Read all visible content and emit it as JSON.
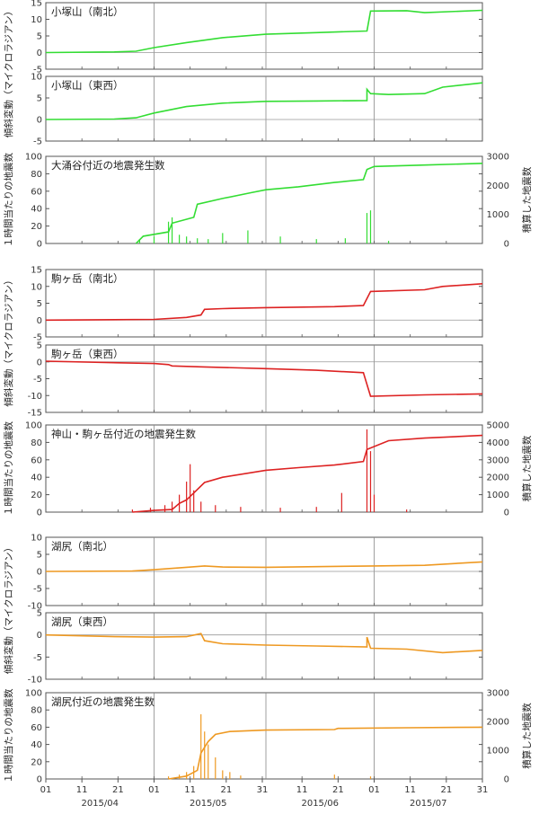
{
  "colors": {
    "kozukayama": "#33dd33",
    "komagatake": "#dd2222",
    "kojiri": "#ee9922",
    "frame": "#555555",
    "zero_line": "#999999",
    "month_line": "#888888"
  },
  "x_axis": {
    "tick_labels": [
      "01",
      "11",
      "21",
      "01",
      "11",
      "21",
      "31",
      "11",
      "21",
      "01",
      "11",
      "21",
      "31"
    ],
    "month_labels": [
      "2015/04",
      "2015/05",
      "2015/06",
      "2015/07"
    ]
  },
  "groups": [
    {
      "tilt_axis_title": "傾斜変動（マイクロラジアン）",
      "count_axis_left_title": "１時間当たりの地震数",
      "count_axis_right_title": "積算した地震数"
    },
    {
      "tilt_axis_title": "傾斜変動（マイクロラジアン）",
      "count_axis_left_title": "１時間当たりの地震数",
      "count_axis_right_title": "積算した地震数"
    },
    {
      "tilt_axis_title": "傾斜変動（マイクロラジアン）",
      "count_axis_left_title": "１時間当たりの地震数",
      "count_axis_right_title": "積算した地震数"
    }
  ],
  "chart_data": [
    {
      "type": "line",
      "title": "小塚山（南北）",
      "color": "#33dd33",
      "ylim": [
        -5,
        15
      ],
      "yticks": [
        -5,
        0,
        5,
        10,
        15
      ],
      "x": [
        "2015-04-01",
        "2015-04-20",
        "2015-04-26",
        "2015-05-01",
        "2015-05-10",
        "2015-05-20",
        "2015-06-01",
        "2015-06-15",
        "2015-06-29",
        "2015-06-30",
        "2015-07-10",
        "2015-07-15",
        "2015-07-31"
      ],
      "y": [
        0,
        0.2,
        0.4,
        1.5,
        3.0,
        4.5,
        5.5,
        6.0,
        6.5,
        12.5,
        12.6,
        12.0,
        12.7
      ]
    },
    {
      "type": "line",
      "title": "小塚山（東西）",
      "color": "#33dd33",
      "ylim": [
        -5,
        10
      ],
      "yticks": [
        -5,
        0,
        5,
        10
      ],
      "x": [
        "2015-04-01",
        "2015-04-20",
        "2015-04-26",
        "2015-05-01",
        "2015-05-10",
        "2015-05-20",
        "2015-06-01",
        "2015-06-15",
        "2015-06-29",
        "2015-06-29",
        "2015-06-30",
        "2015-07-05",
        "2015-07-15",
        "2015-07-20",
        "2015-07-31"
      ],
      "y": [
        0,
        0.1,
        0.4,
        1.5,
        3.0,
        3.8,
        4.2,
        4.3,
        4.4,
        7.0,
        6.0,
        5.8,
        6.0,
        7.5,
        8.5
      ]
    },
    {
      "type": "bar+line",
      "title": "大涌谷付近の地震発生数",
      "color": "#33dd33",
      "ylim": [
        0,
        100
      ],
      "yticks": [
        0,
        20,
        40,
        60,
        80,
        100
      ],
      "y2lim": [
        0,
        3000
      ],
      "y2ticks": [
        0,
        1000,
        2000,
        3000
      ],
      "bars": {
        "x": [
          "2015-04-27",
          "2015-05-01",
          "2015-05-05",
          "2015-05-06",
          "2015-05-08",
          "2015-05-10",
          "2015-05-13",
          "2015-05-16",
          "2015-05-20",
          "2015-05-27",
          "2015-06-05",
          "2015-06-15",
          "2015-06-23",
          "2015-06-29",
          "2015-06-30",
          "2015-07-05"
        ],
        "y": [
          5,
          8,
          25,
          30,
          10,
          8,
          6,
          5,
          12,
          15,
          8,
          5,
          6,
          35,
          38,
          3
        ]
      },
      "cumulative": {
        "x": [
          "2015-04-26",
          "2015-04-28",
          "2015-05-05",
          "2015-05-06",
          "2015-05-12",
          "2015-05-13",
          "2015-05-20",
          "2015-05-28",
          "2015-06-01",
          "2015-06-10",
          "2015-06-20",
          "2015-06-28",
          "2015-06-29",
          "2015-07-01",
          "2015-07-15",
          "2015-07-31"
        ],
        "y": [
          0,
          250,
          400,
          700,
          900,
          1350,
          1550,
          1750,
          1850,
          1950,
          2100,
          2200,
          2550,
          2650,
          2700,
          2760
        ]
      }
    },
    {
      "type": "line",
      "title": "駒ヶ岳（南北）",
      "color": "#dd2222",
      "ylim": [
        -5,
        15
      ],
      "yticks": [
        -5,
        0,
        5,
        10,
        15
      ],
      "x": [
        "2015-04-01",
        "2015-05-01",
        "2015-05-10",
        "2015-05-14",
        "2015-05-15",
        "2015-05-20",
        "2015-06-01",
        "2015-06-20",
        "2015-06-28",
        "2015-06-30",
        "2015-07-15",
        "2015-07-20",
        "2015-07-31"
      ],
      "y": [
        0,
        0.2,
        0.8,
        1.5,
        3.2,
        3.4,
        3.7,
        4.0,
        4.3,
        8.5,
        9.0,
        10.0,
        10.8
      ]
    },
    {
      "type": "line",
      "title": "駒ヶ岳（東西）",
      "color": "#dd2222",
      "ylim": [
        -15,
        5
      ],
      "yticks": [
        -15,
        -10,
        -5,
        0,
        5
      ],
      "x": [
        "2015-04-01",
        "2015-05-01",
        "2015-05-05",
        "2015-05-06",
        "2015-05-15",
        "2015-06-01",
        "2015-06-15",
        "2015-06-28",
        "2015-06-30",
        "2015-07-15",
        "2015-07-31"
      ],
      "y": [
        0.2,
        -0.5,
        -0.8,
        -1.2,
        -1.5,
        -2.0,
        -2.5,
        -3.2,
        -10.2,
        -9.8,
        -9.5
      ]
    },
    {
      "type": "bar+line",
      "title": "神山・駒ヶ岳付近の地震発生数",
      "color": "#dd2222",
      "ylim": [
        0,
        100
      ],
      "yticks": [
        0,
        20,
        40,
        60,
        80,
        100
      ],
      "y2lim": [
        0,
        5000
      ],
      "y2ticks": [
        0,
        1000,
        2000,
        3000,
        4000,
        5000
      ],
      "bars": {
        "x": [
          "2015-04-25",
          "2015-04-30",
          "2015-05-04",
          "2015-05-06",
          "2015-05-08",
          "2015-05-10",
          "2015-05-11",
          "2015-05-12",
          "2015-05-14",
          "2015-05-18",
          "2015-05-25",
          "2015-06-05",
          "2015-06-15",
          "2015-06-22",
          "2015-06-29",
          "2015-06-30",
          "2015-07-01",
          "2015-07-10"
        ],
        "y": [
          3,
          5,
          8,
          12,
          20,
          35,
          55,
          25,
          12,
          8,
          6,
          5,
          6,
          22,
          95,
          70,
          20,
          3
        ]
      },
      "cumulative": {
        "x": [
          "2015-04-25",
          "2015-05-01",
          "2015-05-06",
          "2015-05-08",
          "2015-05-10",
          "2015-05-12",
          "2015-05-15",
          "2015-05-20",
          "2015-06-01",
          "2015-06-10",
          "2015-06-20",
          "2015-06-28",
          "2015-06-29",
          "2015-07-05",
          "2015-07-15",
          "2015-07-31"
        ],
        "y": [
          0,
          100,
          150,
          500,
          700,
          1100,
          1700,
          2000,
          2400,
          2550,
          2700,
          2900,
          3600,
          4100,
          4250,
          4400
        ]
      }
    },
    {
      "type": "line",
      "title": "湖尻（南北）",
      "color": "#ee9922",
      "ylim": [
        -10,
        10
      ],
      "yticks": [
        -10,
        -5,
        0,
        5,
        10
      ],
      "x": [
        "2015-04-01",
        "2015-04-25",
        "2015-05-01",
        "2015-05-10",
        "2015-05-15",
        "2015-05-20",
        "2015-06-01",
        "2015-06-15",
        "2015-07-01",
        "2015-07-15",
        "2015-07-31"
      ],
      "y": [
        0,
        0.1,
        0.5,
        1.2,
        1.6,
        1.3,
        1.2,
        1.4,
        1.6,
        1.8,
        2.8
      ]
    },
    {
      "type": "line",
      "title": "湖尻（東西）",
      "color": "#ee9922",
      "ylim": [
        -10,
        5
      ],
      "yticks": [
        -10,
        -5,
        0,
        5
      ],
      "x": [
        "2015-04-01",
        "2015-04-20",
        "2015-05-01",
        "2015-05-10",
        "2015-05-14",
        "2015-05-15",
        "2015-05-20",
        "2015-06-01",
        "2015-06-15",
        "2015-06-29",
        "2015-06-29",
        "2015-06-30",
        "2015-07-10",
        "2015-07-20",
        "2015-07-31"
      ],
      "y": [
        0,
        -0.4,
        -0.5,
        -0.4,
        0.3,
        -1.3,
        -2.0,
        -2.3,
        -2.5,
        -2.7,
        -0.5,
        -3.0,
        -3.2,
        -4.0,
        -3.5
      ]
    },
    {
      "type": "bar+line",
      "title": "湖尻付近の地震発生数",
      "color": "#ee9922",
      "ylim": [
        0,
        100
      ],
      "yticks": [
        0,
        20,
        40,
        60,
        80,
        100
      ],
      "y2lim": [
        0,
        3000
      ],
      "y2ticks": [
        0,
        1000,
        2000,
        3000
      ],
      "bars": {
        "x": [
          "2015-05-05",
          "2015-05-08",
          "2015-05-10",
          "2015-05-12",
          "2015-05-14",
          "2015-05-15",
          "2015-05-16",
          "2015-05-18",
          "2015-05-20",
          "2015-05-22",
          "2015-05-25",
          "2015-06-20",
          "2015-06-30"
        ],
        "y": [
          3,
          5,
          8,
          15,
          75,
          55,
          40,
          25,
          10,
          8,
          4,
          5,
          3
        ]
      },
      "cumulative": {
        "x": [
          "2015-05-05",
          "2015-05-10",
          "2015-05-13",
          "2015-05-14",
          "2015-05-16",
          "2015-05-18",
          "2015-05-22",
          "2015-06-01",
          "2015-06-20",
          "2015-06-21",
          "2015-07-10",
          "2015-07-31"
        ],
        "y": [
          0,
          100,
          300,
          900,
          1300,
          1550,
          1650,
          1700,
          1720,
          1760,
          1780,
          1800
        ]
      }
    }
  ]
}
